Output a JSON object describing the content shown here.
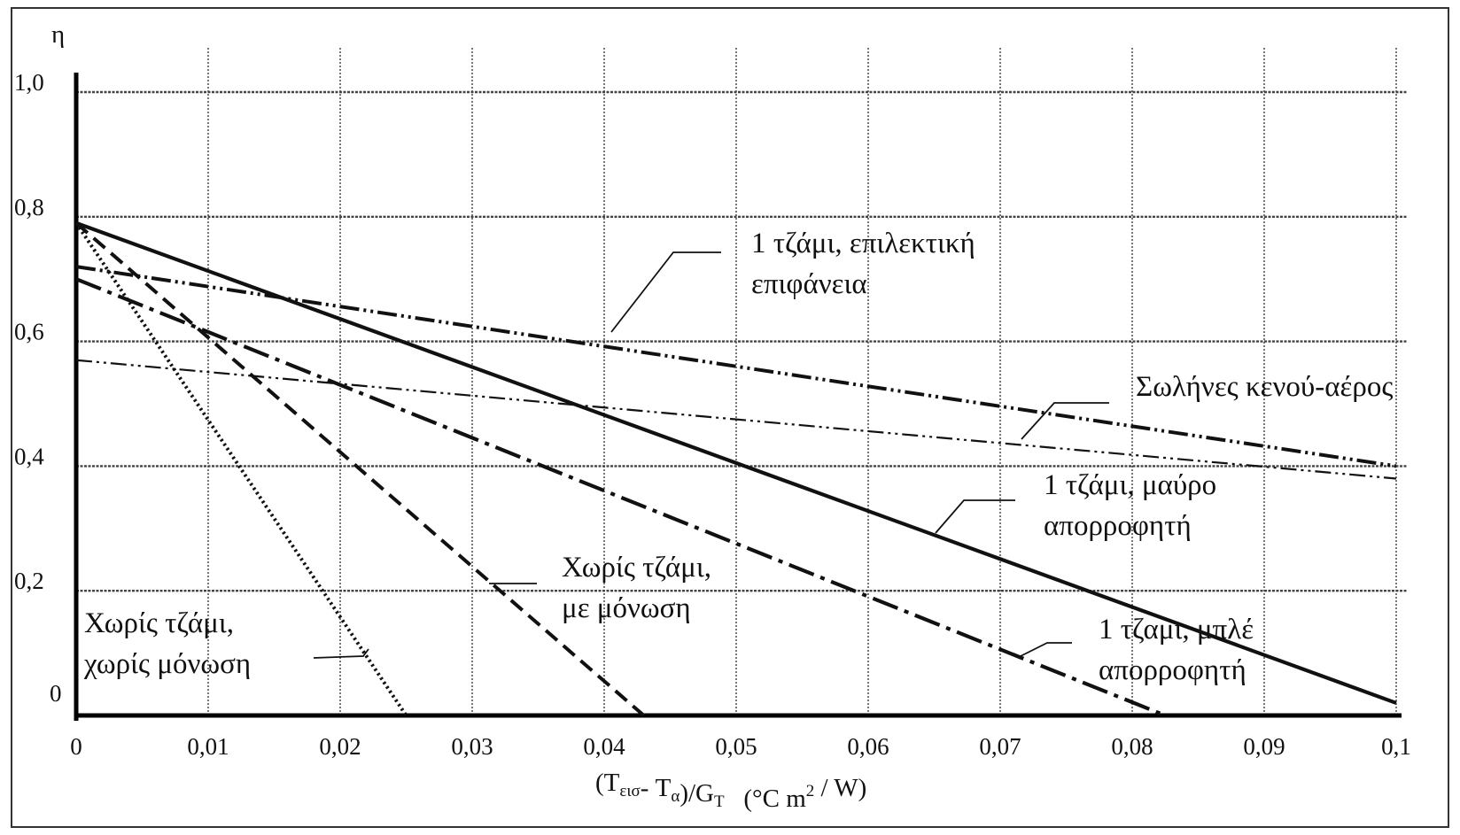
{
  "chart_data": {
    "type": "line",
    "ylabel": "η",
    "xlabel": {
      "main": "(T",
      "sub1": "εισ",
      "mid": "- T",
      "sub2": "α",
      "div": ")/G",
      "sub3": "T",
      "units_pre": "(°C m",
      "sup": "2",
      "units_post": " / W)"
    },
    "xlim": [
      0,
      0.1
    ],
    "ylim": [
      0,
      1.0
    ],
    "x_ticks": [
      {
        "v": 0,
        "label": "0"
      },
      {
        "v": 0.01,
        "label": "0,01"
      },
      {
        "v": 0.02,
        "label": "0,02"
      },
      {
        "v": 0.03,
        "label": "0,03"
      },
      {
        "v": 0.04,
        "label": "0,04"
      },
      {
        "v": 0.05,
        "label": "0,05"
      },
      {
        "v": 0.06,
        "label": "0,06"
      },
      {
        "v": 0.07,
        "label": "0,07"
      },
      {
        "v": 0.08,
        "label": "0,08"
      },
      {
        "v": 0.09,
        "label": "0,09"
      },
      {
        "v": 0.1,
        "label": "0,1"
      }
    ],
    "y_ticks": [
      {
        "v": 0,
        "label": "0"
      },
      {
        "v": 0.2,
        "label": "0,2"
      },
      {
        "v": 0.4,
        "label": "0,4"
      },
      {
        "v": 0.6,
        "label": "0,6"
      },
      {
        "v": 0.8,
        "label": "0,8"
      },
      {
        "v": 1.0,
        "label": "1,0"
      }
    ],
    "grid": true,
    "series": [
      {
        "name": "1 τζάμι, επιλεκτική επιφάνεια",
        "style": "dash-dot-dot",
        "x": [
          0,
          0.1
        ],
        "y": [
          0.72,
          0.4
        ]
      },
      {
        "name": "Σωλήνες κενού-αέρος",
        "style": "dash-dot-thin",
        "x": [
          0,
          0.1
        ],
        "y": [
          0.57,
          0.38
        ]
      },
      {
        "name": "1 τζάμι, μαύρο απορροφητή",
        "style": "solid",
        "x": [
          0,
          0.1
        ],
        "y": [
          0.79,
          0.02
        ]
      },
      {
        "name": "1 τζάμι, μπλέ απορροφητή",
        "style": "dash-dot",
        "x": [
          0,
          0.0825
        ],
        "y": [
          0.7,
          0
        ]
      },
      {
        "name": "Χωρίς τζάμι, με μόνωση",
        "style": "dashed",
        "x": [
          0,
          0.043
        ],
        "y": [
          0.79,
          0
        ]
      },
      {
        "name": "Χωρίς τζάμι, χωρίς μόνωση",
        "style": "dotted",
        "x": [
          0,
          0.025
        ],
        "y": [
          0.79,
          0
        ]
      }
    ],
    "annotations": [
      {
        "lines": [
          "1 τζάμι, επιλεκτική",
          "επιφάνεια"
        ],
        "series": 0
      },
      {
        "lines": [
          "Σωλήνες κενού-αέρος"
        ],
        "series": 1
      },
      {
        "lines": [
          "1 τζάμι, μαύρο",
          "απορροφητή"
        ],
        "series": 2
      },
      {
        "lines": [
          "1 τζαμι, μπλέ",
          "απορροφητή"
        ],
        "series": 3
      },
      {
        "lines": [
          "Χωρίς τζάμι,",
          "με μόνωση"
        ],
        "series": 4
      },
      {
        "lines": [
          "Χωρίς τζάμι,",
          "χωρίς μόνωση"
        ],
        "series": 5
      }
    ]
  }
}
